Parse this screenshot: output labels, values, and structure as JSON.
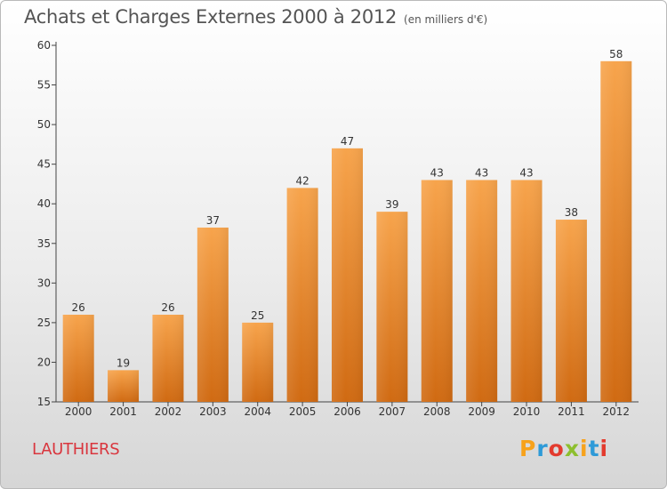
{
  "title": "Achats et Charges Externes 2000 à 2012",
  "unit": "(en milliers d'€)",
  "commune": "LAUTHIERS",
  "logo": {
    "letters": [
      "P",
      "r",
      "o",
      "x",
      "i",
      "t",
      "i"
    ],
    "colors": [
      "#f7a21b",
      "#2e9ad8",
      "#e33b2e",
      "#8dbf2e",
      "#f7a21b",
      "#2e9ad8",
      "#e33b2e"
    ]
  },
  "colors": {
    "bar_top": "#f7a44c",
    "bar_bottom": "#d06a12",
    "title": "#555555",
    "commune": "#d9363e"
  },
  "chart_data": {
    "type": "bar",
    "categories": [
      "2000",
      "2001",
      "2002",
      "2003",
      "2004",
      "2005",
      "2006",
      "2007",
      "2008",
      "2009",
      "2010",
      "2011",
      "2012"
    ],
    "values": [
      26,
      19,
      26,
      37,
      25,
      42,
      47,
      39,
      43,
      43,
      43,
      38,
      58
    ],
    "yticks": [
      15,
      20,
      25,
      30,
      35,
      40,
      45,
      50,
      55,
      60
    ],
    "ylim": [
      15,
      60
    ],
    "grid": false,
    "data_labels": true
  }
}
